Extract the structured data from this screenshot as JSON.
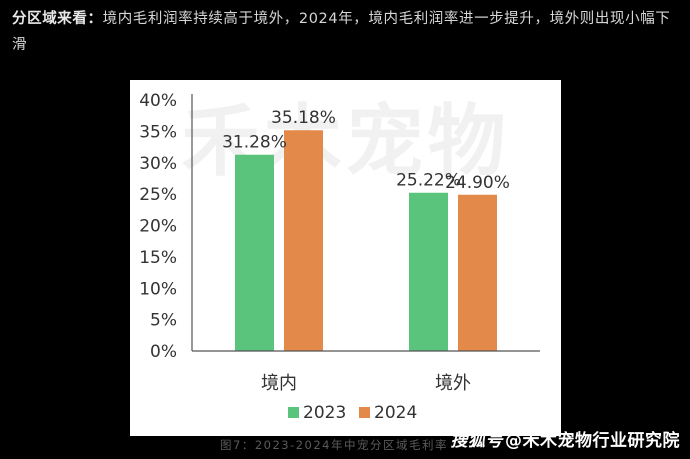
{
  "intro": {
    "lead": "分区域来看：",
    "text": "境内毛利润率持续高于境外，2024年，境内毛利润率进一步提升，境外则出现小幅下滑"
  },
  "watermark": "禾木宠物",
  "caption": "图7：2023-2024年中宠分区域毛利率",
  "credit": {
    "platform": "搜狐号",
    "author": "@禾木宠物行业研究院"
  },
  "colors": {
    "series_2023": "#5ac47d",
    "series_2024": "#e38a4a",
    "axis": "#555555",
    "text": "#333333"
  },
  "chart_data": {
    "type": "bar",
    "categories": [
      "境内",
      "境外"
    ],
    "series": [
      {
        "name": "2023",
        "values": [
          31.28,
          25.22
        ],
        "labels": [
          "31.28%",
          "25.22%"
        ]
      },
      {
        "name": "2024",
        "values": [
          35.18,
          24.9
        ],
        "labels": [
          "35.18%",
          "24.90%"
        ]
      }
    ],
    "ylim": [
      0,
      40
    ],
    "yticks": [
      "0%",
      "5%",
      "10%",
      "15%",
      "20%",
      "25%",
      "30%",
      "35%",
      "40%"
    ],
    "grid": false,
    "legend": "bottom"
  }
}
